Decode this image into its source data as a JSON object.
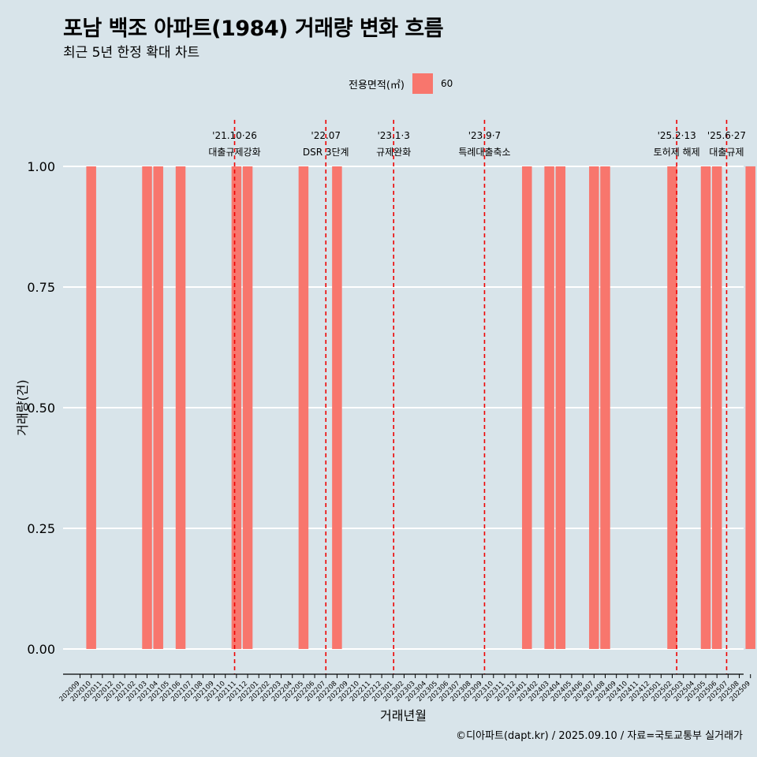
{
  "title": "포남 백조 아파트(1984) 거래량 변화 흐름",
  "subtitle": "최근 5년 한정 확대 차트",
  "caption": "©디아파트(dapt.kr) / 2025.09.10 / 자료=국토교통부 실거래가",
  "legend": {
    "title": "전용면적(㎡)",
    "entries": [
      {
        "label": "60",
        "color": "#f8766d"
      }
    ]
  },
  "chart_data": {
    "type": "bar",
    "xlabel": "거래년월",
    "ylabel": "거래량(건)",
    "ylim": [
      0,
      1
    ],
    "yticks": [
      "0.00",
      "0.25",
      "0.50",
      "0.75",
      "1.00"
    ],
    "grid": true,
    "legend_position": "top",
    "categories": [
      "202009",
      "202010",
      "202011",
      "202012",
      "202101",
      "202102",
      "202103",
      "202104",
      "202105",
      "202106",
      "202107",
      "202108",
      "202109",
      "202110",
      "202111",
      "202112",
      "202201",
      "202202",
      "202203",
      "202204",
      "202205",
      "202206",
      "202207",
      "202208",
      "202209",
      "202210",
      "202211",
      "202212",
      "202301",
      "202302",
      "202303",
      "202304",
      "202305",
      "202306",
      "202307",
      "202308",
      "202309",
      "202310",
      "202311",
      "202312",
      "202401",
      "202402",
      "202403",
      "202404",
      "202405",
      "202406",
      "202407",
      "202408",
      "202409",
      "202410",
      "202411",
      "202412",
      "202501",
      "202502",
      "202503",
      "202504",
      "202505",
      "202506",
      "202507",
      "202508",
      "202509"
    ],
    "series": [
      {
        "name": "60",
        "color": "#f8766d",
        "values": [
          0,
          1,
          0,
          0,
          0,
          0,
          1,
          1,
          0,
          1,
          0,
          0,
          0,
          0,
          1,
          1,
          0,
          0,
          0,
          0,
          1,
          0,
          0,
          1,
          0,
          0,
          0,
          0,
          0,
          0,
          0,
          0,
          0,
          0,
          0,
          0,
          0,
          0,
          0,
          0,
          1,
          0,
          1,
          1,
          0,
          0,
          1,
          1,
          0,
          0,
          0,
          0,
          0,
          1,
          0,
          0,
          1,
          1,
          0,
          0,
          1
        ]
      }
    ],
    "events": [
      {
        "date": "2021-10-26",
        "line1": "'21.10·26",
        "line2": "대출규제강화"
      },
      {
        "date": "2022-07",
        "line1": "'22.07",
        "line2": "DSR 3단계"
      },
      {
        "date": "2023-01-03",
        "line1": "'23.1·3",
        "line2": "규제완화"
      },
      {
        "date": "2023-09-07",
        "line1": "'23.9·7",
        "line2": "특례대출축소"
      },
      {
        "date": "2025-02-13",
        "line1": "'25.2·13",
        "line2": "토허제 해제"
      },
      {
        "date": "2025-06-27",
        "line1": "'25.6·27",
        "line2": "대출규제"
      }
    ]
  }
}
